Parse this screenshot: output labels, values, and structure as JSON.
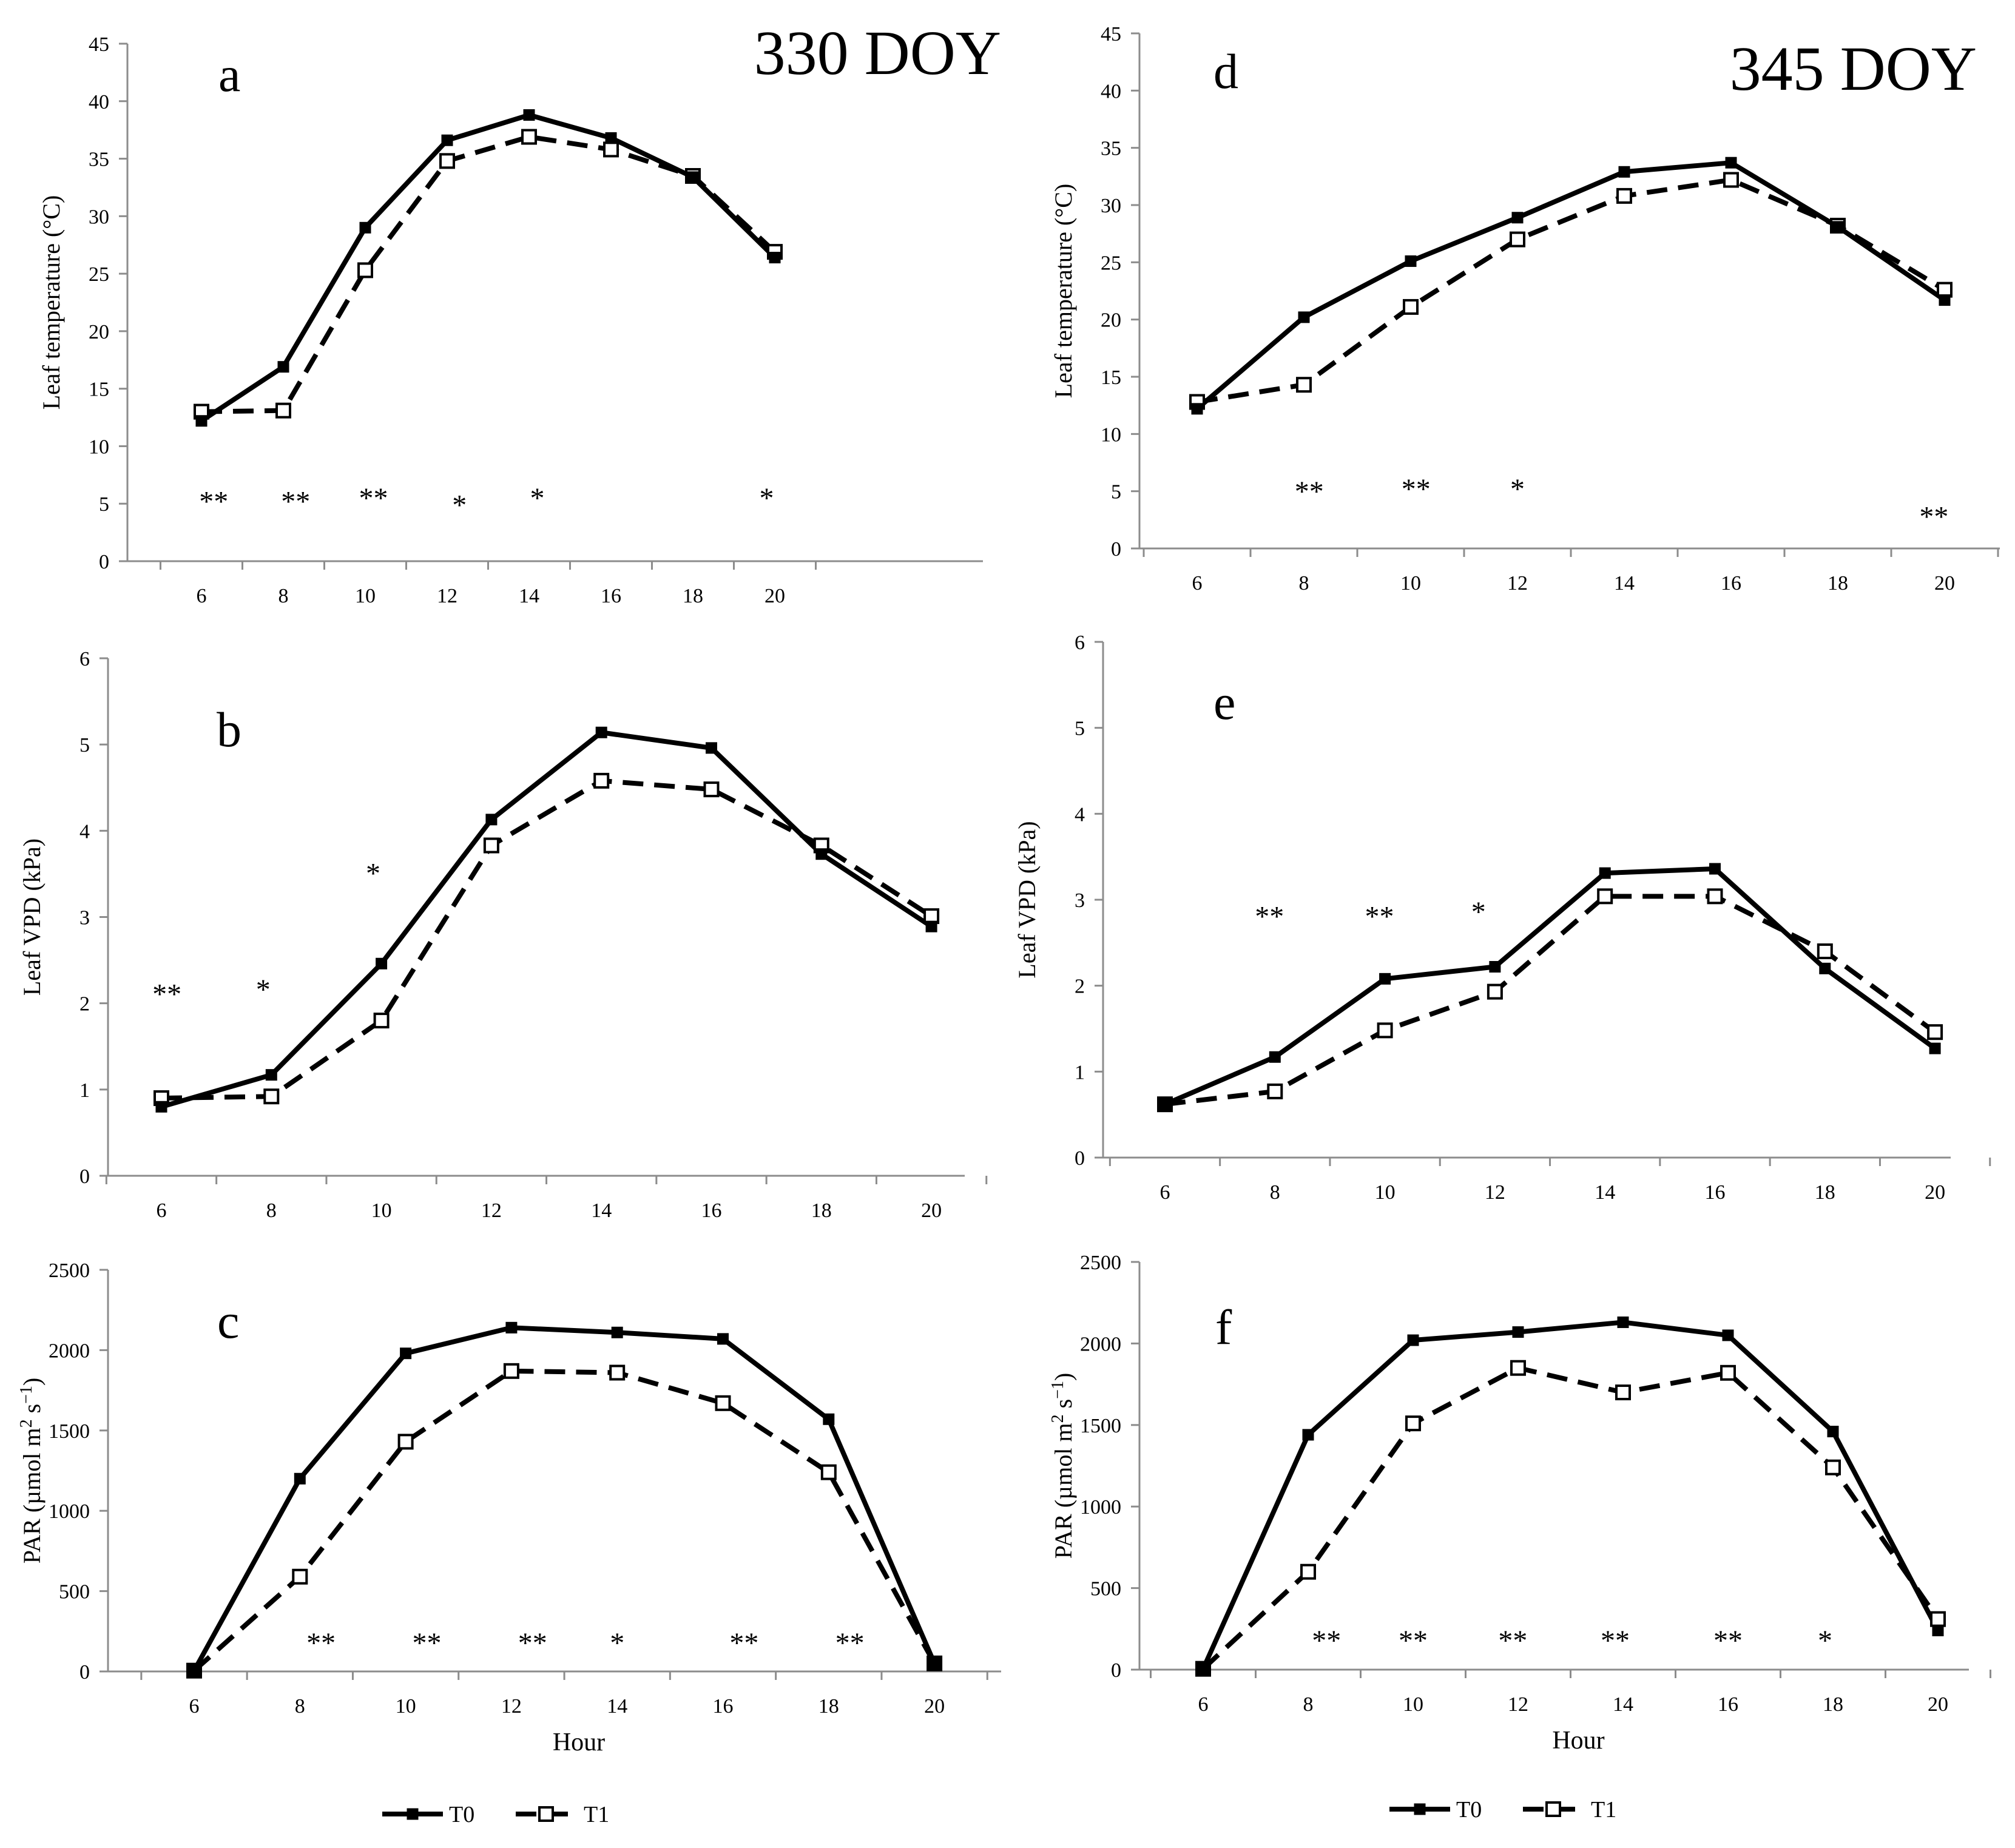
{
  "legend": {
    "t0": "T0",
    "t1": "T1"
  },
  "chart_data": [
    {
      "panel": "a",
      "type": "line",
      "title": "330 DOY",
      "xlabel": "",
      "ylabel": "Leaf temperature (°C)",
      "x": [
        6,
        8,
        10,
        12,
        14,
        16,
        18,
        20
      ],
      "ylim": [
        0,
        45
      ],
      "ystep": 5,
      "series": [
        {
          "name": "T0",
          "values": [
            12.2,
            16.9,
            29.0,
            36.6,
            38.8,
            36.8,
            33.4,
            26.4
          ]
        },
        {
          "name": "T1",
          "values": [
            13.0,
            13.1,
            25.3,
            34.8,
            36.9,
            35.8,
            33.5,
            26.9
          ]
        }
      ],
      "significance": [
        {
          "x": 6.3,
          "y": 5.5,
          "text": "**"
        },
        {
          "x": 8.3,
          "y": 5.5,
          "text": "**"
        },
        {
          "x": 10.2,
          "y": 5.8,
          "text": "**"
        },
        {
          "x": 12.3,
          "y": 5.2,
          "text": "*"
        },
        {
          "x": 14.2,
          "y": 5.8,
          "text": "*"
        },
        {
          "x": 19.8,
          "y": 5.8,
          "text": "*"
        }
      ]
    },
    {
      "panel": "b",
      "type": "line",
      "title": "",
      "xlabel": "",
      "ylabel": "Leaf VPD (kPa)",
      "x": [
        6,
        8,
        10,
        12,
        14,
        16,
        18,
        20
      ],
      "ylim": [
        0,
        6
      ],
      "ystep": 1,
      "series": [
        {
          "name": "T0",
          "values": [
            0.8,
            1.17,
            2.46,
            4.13,
            5.14,
            4.96,
            3.73,
            2.89
          ]
        },
        {
          "name": "T1",
          "values": [
            0.9,
            0.92,
            1.8,
            3.83,
            4.58,
            4.48,
            3.83,
            3.01
          ]
        }
      ],
      "significance": [
        {
          "x": 6.1,
          "y": 2.15,
          "text": "**"
        },
        {
          "x": 7.85,
          "y": 2.2,
          "text": "*"
        },
        {
          "x": 9.85,
          "y": 3.55,
          "text": "*"
        }
      ]
    },
    {
      "panel": "c",
      "type": "line",
      "title": "",
      "xlabel": "Hour",
      "ylabel": "PAR (µmol m² s⁻¹)",
      "x": [
        6,
        8,
        10,
        12,
        14,
        16,
        18,
        20
      ],
      "ylim": [
        0,
        2500
      ],
      "ystep": 500,
      "series": [
        {
          "name": "T0",
          "values": [
            5,
            1200,
            1980,
            2140,
            2110,
            2070,
            1570,
            50
          ]
        },
        {
          "name": "T1",
          "values": [
            5,
            590,
            1430,
            1870,
            1860,
            1670,
            1240,
            50
          ]
        }
      ],
      "significance": [
        {
          "x": 8.4,
          "y": 200,
          "text": "**"
        },
        {
          "x": 10.4,
          "y": 200,
          "text": "**"
        },
        {
          "x": 12.4,
          "y": 200,
          "text": "**"
        },
        {
          "x": 14.0,
          "y": 200,
          "text": "*"
        },
        {
          "x": 16.4,
          "y": 200,
          "text": "**"
        },
        {
          "x": 18.4,
          "y": 200,
          "text": "**"
        }
      ]
    },
    {
      "panel": "d",
      "type": "line",
      "title": "345 DOY",
      "xlabel": "",
      "ylabel": "Leaf temperature (°C)",
      "x": [
        6,
        8,
        10,
        12,
        14,
        16,
        18,
        20
      ],
      "ylim": [
        0,
        45
      ],
      "ystep": 5,
      "series": [
        {
          "name": "T0",
          "values": [
            12.2,
            20.2,
            25.1,
            28.9,
            32.9,
            33.7,
            28.1,
            21.7
          ]
        },
        {
          "name": "T1",
          "values": [
            12.8,
            14.3,
            21.1,
            27.0,
            30.8,
            32.2,
            28.2,
            22.6
          ]
        }
      ],
      "significance": [
        {
          "x": 8.1,
          "y": 5.3,
          "text": "**"
        },
        {
          "x": 10.1,
          "y": 5.5,
          "text": "**"
        },
        {
          "x": 12.0,
          "y": 5.5,
          "text": "*"
        },
        {
          "x": 19.8,
          "y": 3.1,
          "text": "**"
        }
      ]
    },
    {
      "panel": "e",
      "type": "line",
      "title": "",
      "xlabel": "",
      "ylabel": "Leaf VPD (kPa)",
      "x": [
        6,
        8,
        10,
        12,
        14,
        16,
        18,
        20
      ],
      "ylim": [
        0,
        6
      ],
      "ystep": 1,
      "series": [
        {
          "name": "T0",
          "values": [
            0.62,
            1.17,
            2.08,
            2.22,
            3.31,
            3.36,
            2.2,
            1.27
          ]
        },
        {
          "name": "T1",
          "values": [
            0.62,
            0.77,
            1.48,
            1.93,
            3.04,
            3.04,
            2.4,
            1.46
          ]
        }
      ],
      "significance": [
        {
          "x": 7.9,
          "y": 2.85,
          "text": "**"
        },
        {
          "x": 9.9,
          "y": 2.85,
          "text": "**"
        },
        {
          "x": 11.7,
          "y": 2.9,
          "text": "*"
        }
      ]
    },
    {
      "panel": "f",
      "type": "line",
      "title": "",
      "xlabel": "Hour",
      "ylabel": "PAR (µmol m² s⁻¹)",
      "x": [
        6,
        8,
        10,
        12,
        14,
        16,
        18,
        20
      ],
      "ylim": [
        0,
        2500
      ],
      "ystep": 500,
      "series": [
        {
          "name": "T0",
          "values": [
            5,
            1440,
            2020,
            2070,
            2130,
            2050,
            1460,
            240
          ]
        },
        {
          "name": "T1",
          "values": [
            5,
            600,
            1510,
            1850,
            1700,
            1820,
            1240,
            310
          ]
        }
      ],
      "significance": [
        {
          "x": 8.35,
          "y": 200,
          "text": "**"
        },
        {
          "x": 10.0,
          "y": 200,
          "text": "**"
        },
        {
          "x": 11.9,
          "y": 200,
          "text": "**"
        },
        {
          "x": 13.85,
          "y": 200,
          "text": "**"
        },
        {
          "x": 16.0,
          "y": 200,
          "text": "**"
        },
        {
          "x": 17.85,
          "y": 200,
          "text": "*"
        }
      ]
    }
  ]
}
